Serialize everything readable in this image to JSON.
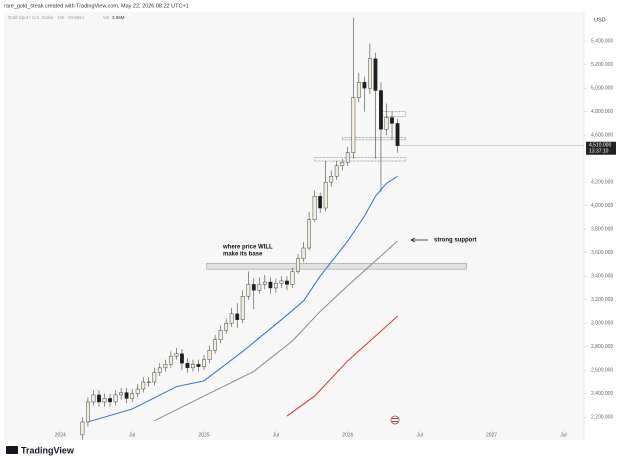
{
  "header": "rare_gold_steak created with TradingView.com, May 22, 2026 08:22 UTC+1",
  "symbol": "Gold Spot / U.S. Dollar · 1W · OANDA",
  "volume_label": "Vol",
  "volume": "3.56M",
  "currency": "USD",
  "logo": "TradingView",
  "chart_data": {
    "type": "candlestick",
    "xlim": [
      -10,
      94
    ],
    "ylim": [
      2100,
      5750
    ],
    "xticks": [
      {
        "value": 0,
        "label": "2024"
      },
      {
        "value": 13,
        "label": "Jul"
      },
      {
        "value": 26,
        "label": "2025"
      },
      {
        "value": 39,
        "label": "Jul"
      },
      {
        "value": 52,
        "label": "2026"
      },
      {
        "value": 65,
        "label": "Jul"
      },
      {
        "value": 78,
        "label": "2027"
      },
      {
        "value": 91,
        "label": "Jul"
      }
    ],
    "yticks": [
      {
        "value": 5400,
        "label": "5,400.000"
      },
      {
        "value": 5200,
        "label": "5,200.000"
      },
      {
        "value": 5000,
        "label": "5,000.000"
      },
      {
        "value": 4800,
        "label": "4,800.000"
      },
      {
        "value": 4600,
        "label": "4,600.000"
      },
      {
        "value": 4200,
        "label": "4,200.000"
      },
      {
        "value": 4000,
        "label": "4,000.000"
      },
      {
        "value": 3800,
        "label": "3,800.000"
      },
      {
        "value": 3600,
        "label": "3,600.000"
      },
      {
        "value": 3400,
        "label": "3,400.000"
      },
      {
        "value": 3200,
        "label": "3,200.000"
      },
      {
        "value": 3000,
        "label": "3,000.000"
      },
      {
        "value": 2800,
        "label": "2,800.000"
      },
      {
        "value": 2600,
        "label": "2,600.000"
      },
      {
        "value": 2400,
        "label": "2,400.000"
      },
      {
        "value": 2200,
        "label": "2,200.000"
      }
    ],
    "up_color": "#f3ecda",
    "down_color": "#1e1e1e",
    "x": [
      4,
      5,
      6,
      7,
      8,
      9,
      10,
      11,
      12,
      13,
      14,
      15,
      16,
      17,
      18,
      19,
      20,
      21,
      22,
      23,
      24,
      25,
      26,
      27,
      28,
      29,
      30,
      31,
      32,
      33,
      34,
      35,
      36,
      37,
      38,
      39,
      40,
      41,
      42,
      43,
      44,
      45,
      46,
      47,
      48,
      49,
      50,
      51,
      52,
      53,
      54,
      55,
      56,
      57,
      58,
      59,
      60,
      61
    ],
    "open": [
      2050,
      2160,
      2330,
      2390,
      2330,
      2360,
      2330,
      2390,
      2410,
      2360,
      2400,
      2440,
      2500,
      2500,
      2580,
      2620,
      2650,
      2720,
      2740,
      2660,
      2620,
      2650,
      2630,
      2690,
      2770,
      2860,
      2940,
      3000,
      3080,
      3030,
      3230,
      3330,
      3280,
      3330,
      3350,
      3300,
      3340,
      3360,
      3330,
      3440,
      3550,
      3640,
      3880,
      4080,
      3980,
      4200,
      4250,
      4340,
      4370,
      4450,
      4920,
      5050,
      5000,
      5250,
      4980,
      4650,
      4750,
      4700
    ],
    "high": [
      2200,
      2370,
      2430,
      2430,
      2400,
      2400,
      2430,
      2450,
      2450,
      2440,
      2480,
      2540,
      2540,
      2620,
      2660,
      2690,
      2760,
      2790,
      2780,
      2700,
      2690,
      2690,
      2730,
      2810,
      2900,
      2980,
      3040,
      3130,
      3170,
      3280,
      3440,
      3380,
      3390,
      3410,
      3390,
      3380,
      3400,
      3400,
      3470,
      3590,
      3690,
      3950,
      4130,
      4110,
      4380,
      4300,
      4380,
      4400,
      4500,
      5600,
      5130,
      5100,
      5380,
      5300,
      5050,
      4870,
      4800,
      4740
    ],
    "low": [
      2010,
      2120,
      2300,
      2290,
      2290,
      2290,
      2300,
      2350,
      2320,
      2330,
      2370,
      2410,
      2460,
      2470,
      2550,
      2590,
      2620,
      2690,
      2600,
      2580,
      2590,
      2590,
      2600,
      2660,
      2740,
      2830,
      2910,
      2970,
      2960,
      3000,
      3200,
      3120,
      3250,
      3290,
      3250,
      3260,
      3300,
      3280,
      3300,
      3420,
      3520,
      3620,
      3860,
      3940,
      3950,
      4160,
      4220,
      4300,
      4340,
      4400,
      4880,
      4800,
      4950,
      4400,
      4120,
      4600,
      4560,
      4450
    ],
    "close": [
      2160,
      2330,
      2390,
      2330,
      2360,
      2330,
      2390,
      2410,
      2360,
      2400,
      2440,
      2500,
      2500,
      2580,
      2620,
      2650,
      2720,
      2740,
      2660,
      2620,
      2650,
      2630,
      2690,
      2770,
      2860,
      2940,
      3000,
      3080,
      3030,
      3230,
      3330,
      3280,
      3330,
      3350,
      3300,
      3340,
      3360,
      3330,
      3440,
      3550,
      3640,
      3880,
      4080,
      3980,
      4200,
      4250,
      4340,
      4370,
      4450,
      4920,
      5050,
      5000,
      5250,
      4980,
      4650,
      4750,
      4700,
      4510
    ],
    "series": [
      {
        "color": "#2f6fd6",
        "x": [
          5,
          13,
          21,
          26,
          33,
          40,
          44,
          47,
          52,
          55,
          57,
          59,
          61
        ],
        "values": [
          2160,
          2270,
          2460,
          2510,
          2760,
          3030,
          3190,
          3400,
          3700,
          3910,
          4080,
          4190,
          4250
        ]
      },
      {
        "color": "#8a8a8a",
        "x": [
          17,
          26,
          35,
          42,
          47,
          52,
          57,
          61
        ],
        "values": [
          2170,
          2380,
          2590,
          2850,
          3100,
          3320,
          3530,
          3700
        ]
      },
      {
        "color": "#e03030",
        "x": [
          41,
          46,
          52,
          57,
          61
        ],
        "values": [
          2210,
          2380,
          2680,
          2890,
          3060
        ]
      }
    ],
    "zones": [
      {
        "x": [
          26.5,
          73.5
        ],
        "y": [
          3460,
          3510
        ],
        "style": "hatched"
      },
      {
        "x": [
          58,
          62.5
        ],
        "y": [
          4760,
          4800
        ],
        "style": "dotted"
      },
      {
        "x": [
          51,
          62.5
        ],
        "y": [
          4560,
          4580
        ],
        "style": "dotted"
      },
      {
        "x": [
          46,
          62.5
        ],
        "y": [
          4380,
          4410
        ],
        "style": "dotted"
      }
    ],
    "last_price": {
      "value": 4510,
      "label": "4,510.000"
    },
    "countdown": "13:37:10",
    "annotations": [
      "where price WILL",
      "make its base",
      "strong support"
    ]
  }
}
